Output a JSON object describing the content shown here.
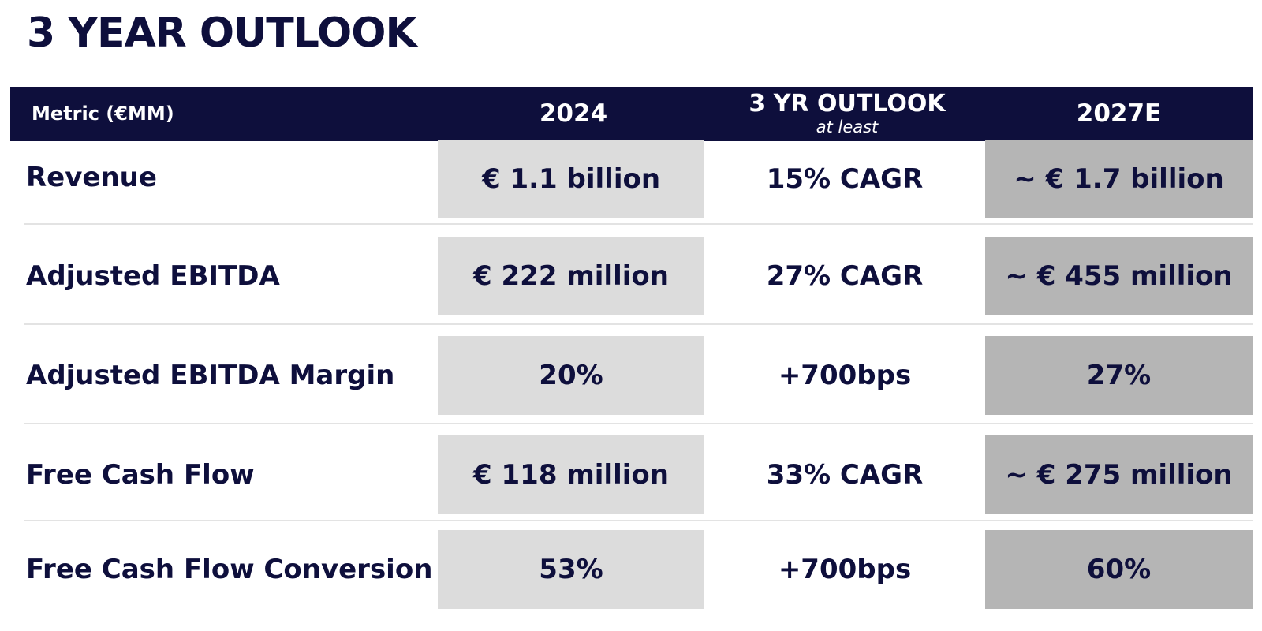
{
  "title": "3 YEAR OUTLOOK",
  "header": {
    "metric": "Metric (€MM)",
    "col_2024": "2024",
    "col_outlook": "3 YR OUTLOOK",
    "col_outlook_sub": "at least",
    "col_2027": "2027E"
  },
  "rows": [
    {
      "metric": "Revenue",
      "v2024": "€ 1.1 billion",
      "outlook": "15% CAGR",
      "v2027": "~ € 1.7 billion"
    },
    {
      "metric": "Adjusted EBITDA",
      "v2024": "€ 222 million",
      "outlook": "27% CAGR",
      "v2027": "~ € 455 million"
    },
    {
      "metric": "Adjusted EBITDA Margin",
      "v2024": "20%",
      "outlook": "+700bps",
      "v2027": "27%"
    },
    {
      "metric": "Free Cash Flow",
      "v2024": "€ 118 million",
      "outlook": "33% CAGR",
      "v2027": "~ € 275 million"
    },
    {
      "metric": "Free Cash Flow Conversion",
      "v2024": "53%",
      "outlook": "+700bps",
      "v2027": "60%"
    }
  ],
  "colors": {
    "navy": "#0e0f3c",
    "cell_2024_bg": "#dcdcdc",
    "cell_2027_bg": "#b5b5b5"
  }
}
